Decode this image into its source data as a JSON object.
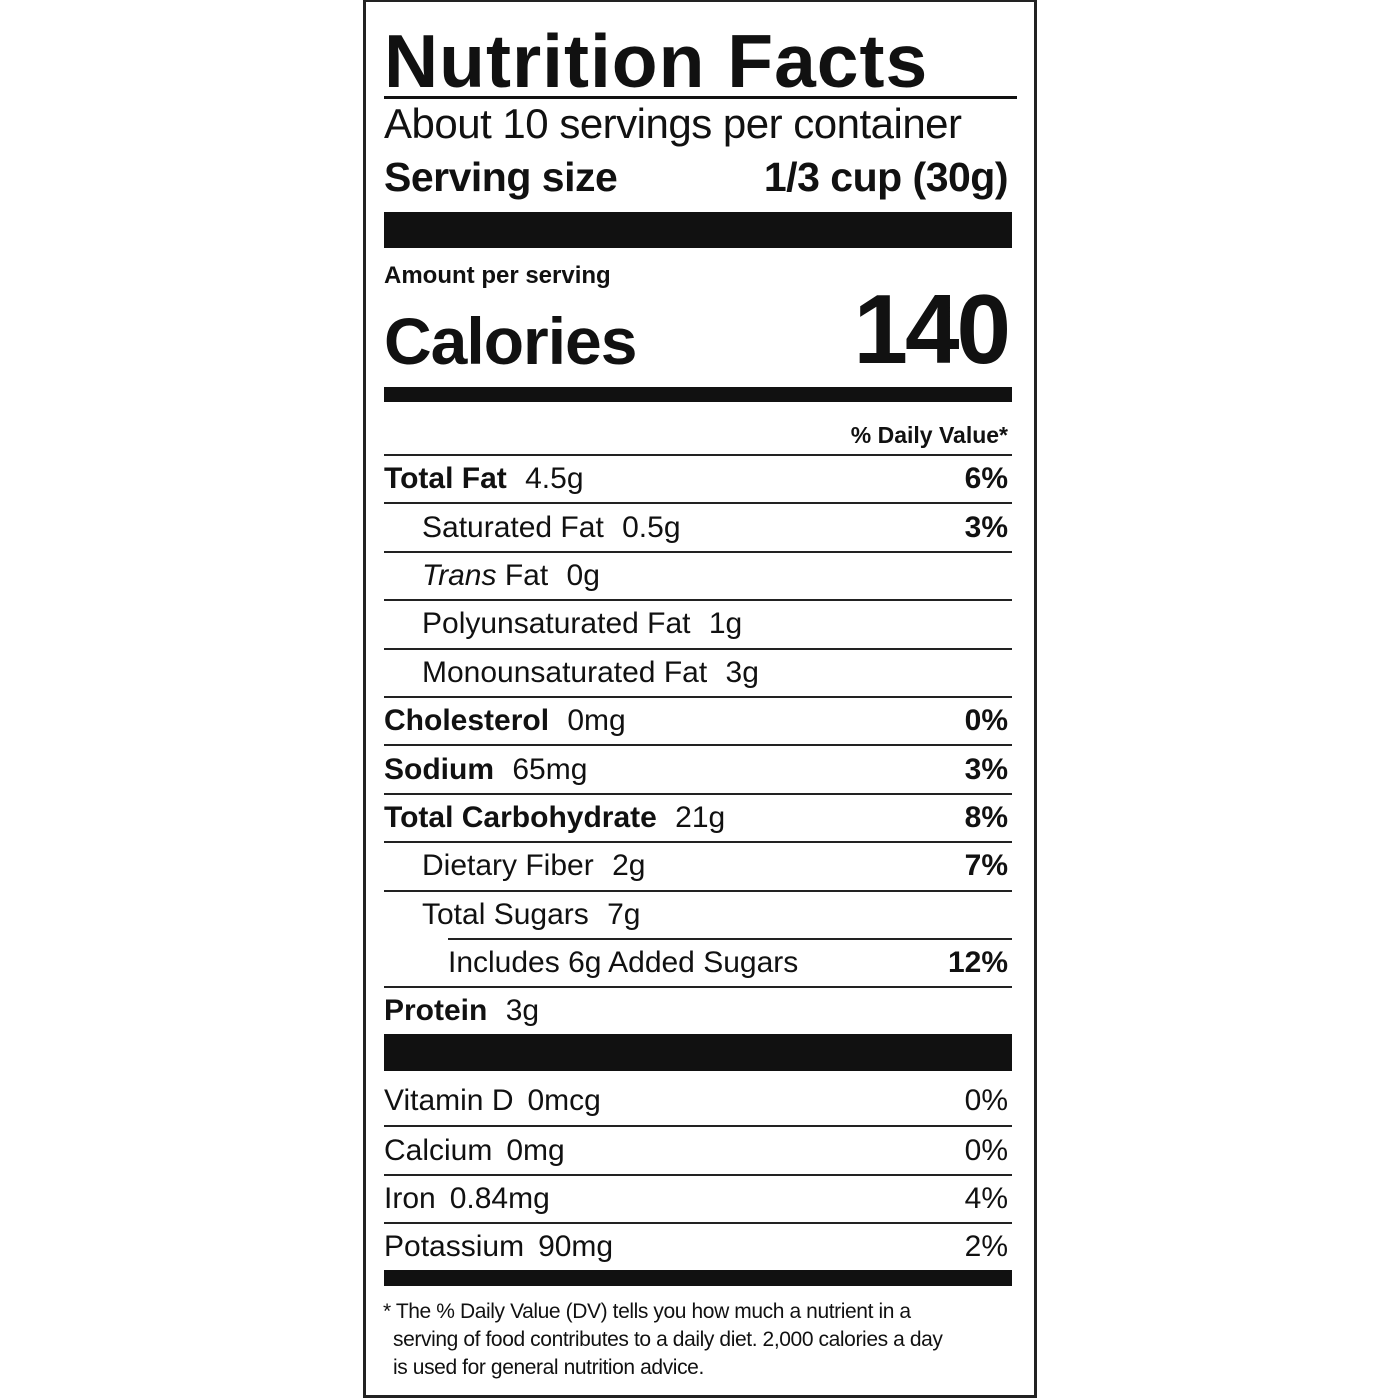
{
  "title": "Nutrition Facts",
  "servings_per_container": "About 10 servings per container",
  "serving_size": {
    "label": "Serving size",
    "value": "1/3 cup (30g)"
  },
  "amount_per_serving": "Amount per serving",
  "calories": {
    "label": "Calories",
    "value": "140"
  },
  "daily_value_header": "% Daily Value*",
  "nutrients": [
    {
      "label": "Total Fat",
      "amount": "4.5g",
      "dv": "6%",
      "bold": true,
      "indent": 0
    },
    {
      "label": "Saturated Fat",
      "amount": "0.5g",
      "dv": "3%",
      "bold": false,
      "indent": 1
    },
    {
      "label_italic": "Trans",
      "label": "Fat",
      "amount": "0g",
      "dv": "",
      "bold": false,
      "indent": 1
    },
    {
      "label": "Polyunsaturated Fat",
      "amount": "1g",
      "dv": "",
      "bold": false,
      "indent": 1
    },
    {
      "label": "Monounsaturated Fat",
      "amount": "3g",
      "dv": "",
      "bold": false,
      "indent": 1
    },
    {
      "label": "Cholesterol",
      "amount": "0mg",
      "dv": "0%",
      "bold": true,
      "indent": 0
    },
    {
      "label": "Sodium",
      "amount": "65mg",
      "dv": "3%",
      "bold": true,
      "indent": 0
    },
    {
      "label": "Total Carbohydrate",
      "amount": "21g",
      "dv": "8%",
      "bold": true,
      "indent": 0
    },
    {
      "label": "Dietary Fiber",
      "amount": "2g",
      "dv": "7%",
      "bold": false,
      "indent": 1
    },
    {
      "label": "Total Sugars",
      "amount": "7g",
      "dv": "",
      "bold": false,
      "indent": 1
    },
    {
      "label": "Includes 6g Added Sugars",
      "amount": "",
      "dv": "12%",
      "bold": false,
      "indent": 2
    },
    {
      "label": "Protein",
      "amount": "3g",
      "dv": "",
      "bold": true,
      "indent": 0
    }
  ],
  "vitamins": [
    {
      "label": "Vitamin D",
      "amount": "0mcg",
      "dv": "0%"
    },
    {
      "label": "Calcium",
      "amount": "0mg",
      "dv": "0%"
    },
    {
      "label": "Iron",
      "amount": "0.84mg",
      "dv": "4%"
    },
    {
      "label": "Potassium",
      "amount": "90mg",
      "dv": "2%"
    }
  ],
  "footnote": [
    "* The % Daily Value (DV) tells you how much a nutrient in a serving of food contributes to a daily diet. 2,000 calories a day is used for general nutrition advice."
  ]
}
